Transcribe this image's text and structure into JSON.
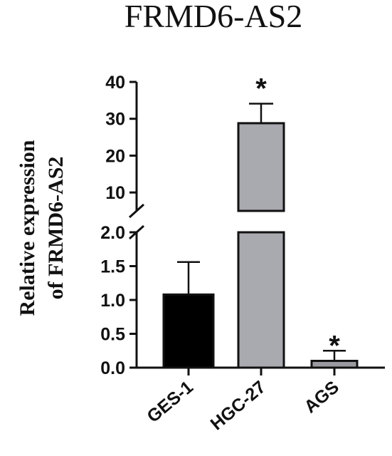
{
  "chart_data": {
    "type": "bar",
    "title": "FRMD6-AS2",
    "ylabel_lines": [
      "Relative expression",
      "of FRMD6-AS2"
    ],
    "categories": [
      "GES-1",
      "HGC-27",
      "AGS"
    ],
    "values": [
      1.08,
      28.8,
      0.1
    ],
    "errors": [
      0.48,
      5.3,
      0.15
    ],
    "significance": [
      "",
      "*",
      "*"
    ],
    "bar_colors": [
      "#000000",
      "#a9a9b0",
      "#9a9aa0"
    ],
    "axis_break": true,
    "lower_ylim": [
      0,
      2.0
    ],
    "upper_ylim": [
      5,
      40
    ],
    "lower_ticks": [
      "0.0",
      "0.5",
      "1.0",
      "1.5",
      "2.0"
    ],
    "upper_ticks": [
      "10",
      "20",
      "30",
      "40"
    ],
    "grid": false
  }
}
